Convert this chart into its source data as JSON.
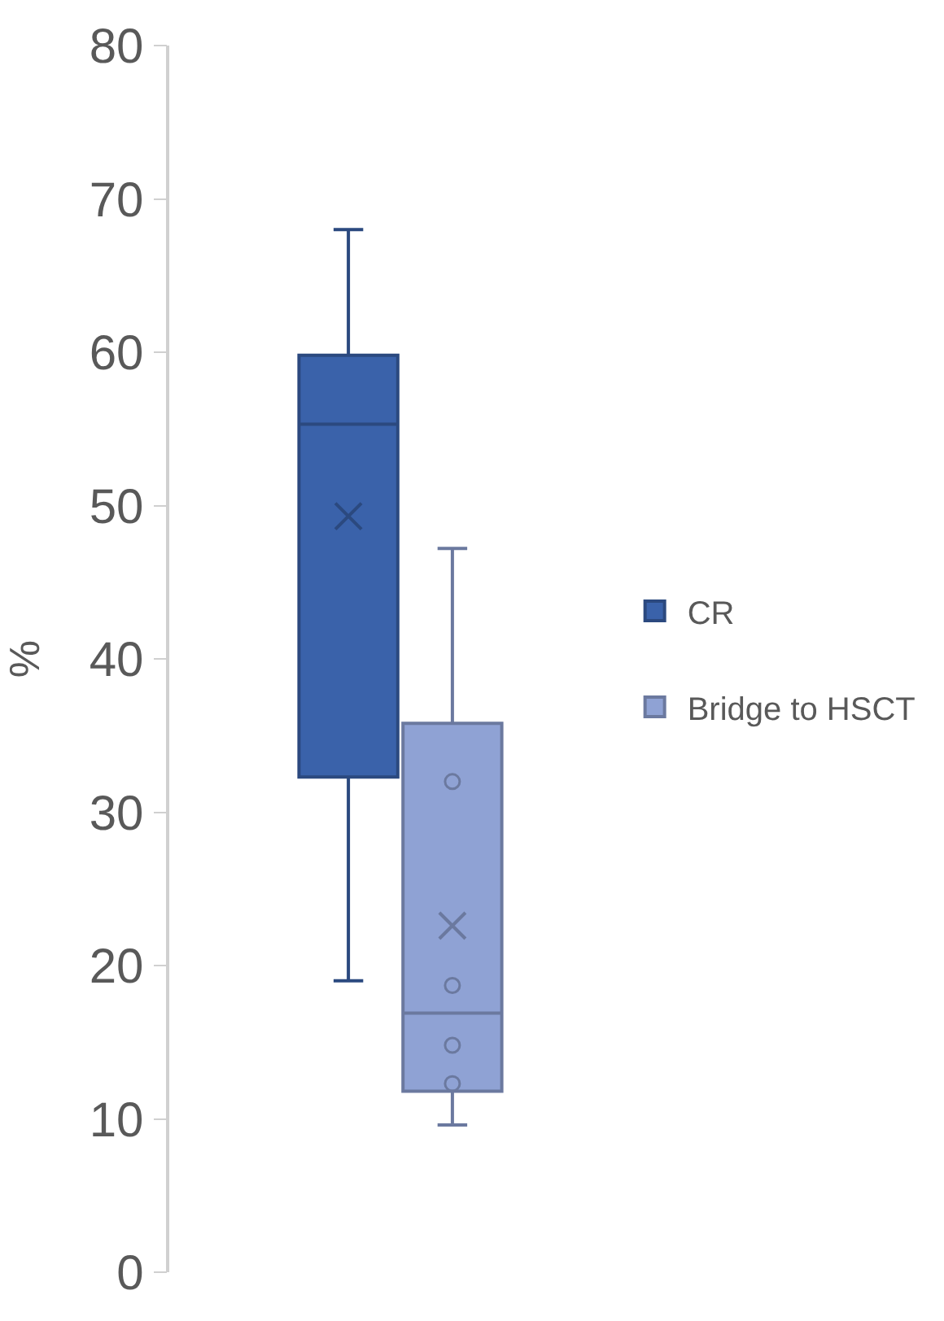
{
  "chart_data": {
    "type": "box",
    "ylabel": "%",
    "categories": [
      null
    ],
    "ylim": [
      0,
      80
    ],
    "yticks": [
      0,
      10,
      20,
      30,
      40,
      50,
      60,
      70,
      80
    ],
    "grid": false,
    "legend": "right",
    "marker": "circle",
    "series": [
      {
        "name": "CR",
        "color": "#3a62aa",
        "boxes": [
          {
            "low": 19,
            "q1": 32.3,
            "median": 55.3,
            "q3": 59.8,
            "high": 68,
            "mean": 49.3
          }
        ]
      },
      {
        "name": "Bridge to HSCT",
        "color": "#8fa2d4",
        "boxes": [
          {
            "low": 9.6,
            "q1": 11.8,
            "median": 16.9,
            "q3": 35.8,
            "high": 47.2,
            "mean": 22.6,
            "outliers": [
              32,
              18.7,
              14.8,
              12.3
            ]
          }
        ]
      }
    ]
  }
}
